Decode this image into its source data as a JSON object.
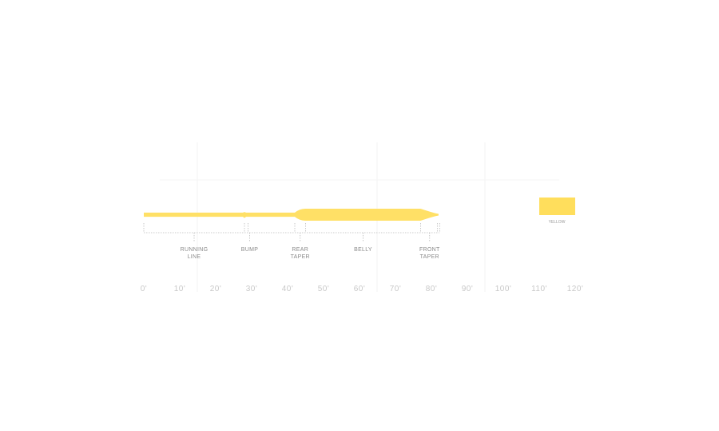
{
  "line_color": "#ffe066",
  "axis_unit": "ft",
  "axis_ticks": [
    "0'",
    "10'",
    "20'",
    "30'",
    "40'",
    "50'",
    "60'",
    "70'",
    "80'",
    "90'",
    "100'",
    "110'",
    "120'"
  ],
  "profile": {
    "start_ft": 0,
    "bump_ft": 28,
    "rear_taper_start_ft": 42,
    "belly_start_ft": 45,
    "front_taper_start_ft": 77,
    "tip_ft": 82
  },
  "segments": [
    {
      "label_lines": [
        "RUNNING",
        "LINE"
      ],
      "from_ft": 0,
      "to_ft": 28
    },
    {
      "label_lines": [
        "BUMP"
      ],
      "from_ft": 28,
      "to_ft": 30
    },
    {
      "label_lines": [
        "REAR",
        "TAPER"
      ],
      "from_ft": 42,
      "to_ft": 45
    },
    {
      "label_lines": [
        "BELLY"
      ],
      "from_ft": 45,
      "to_ft": 77
    },
    {
      "label_lines": [
        "FRONT",
        "TAPER"
      ],
      "from_ft": 77,
      "to_ft": 82
    }
  ],
  "swatch": {
    "label": "YELLOW",
    "color": "#ffde5c"
  }
}
